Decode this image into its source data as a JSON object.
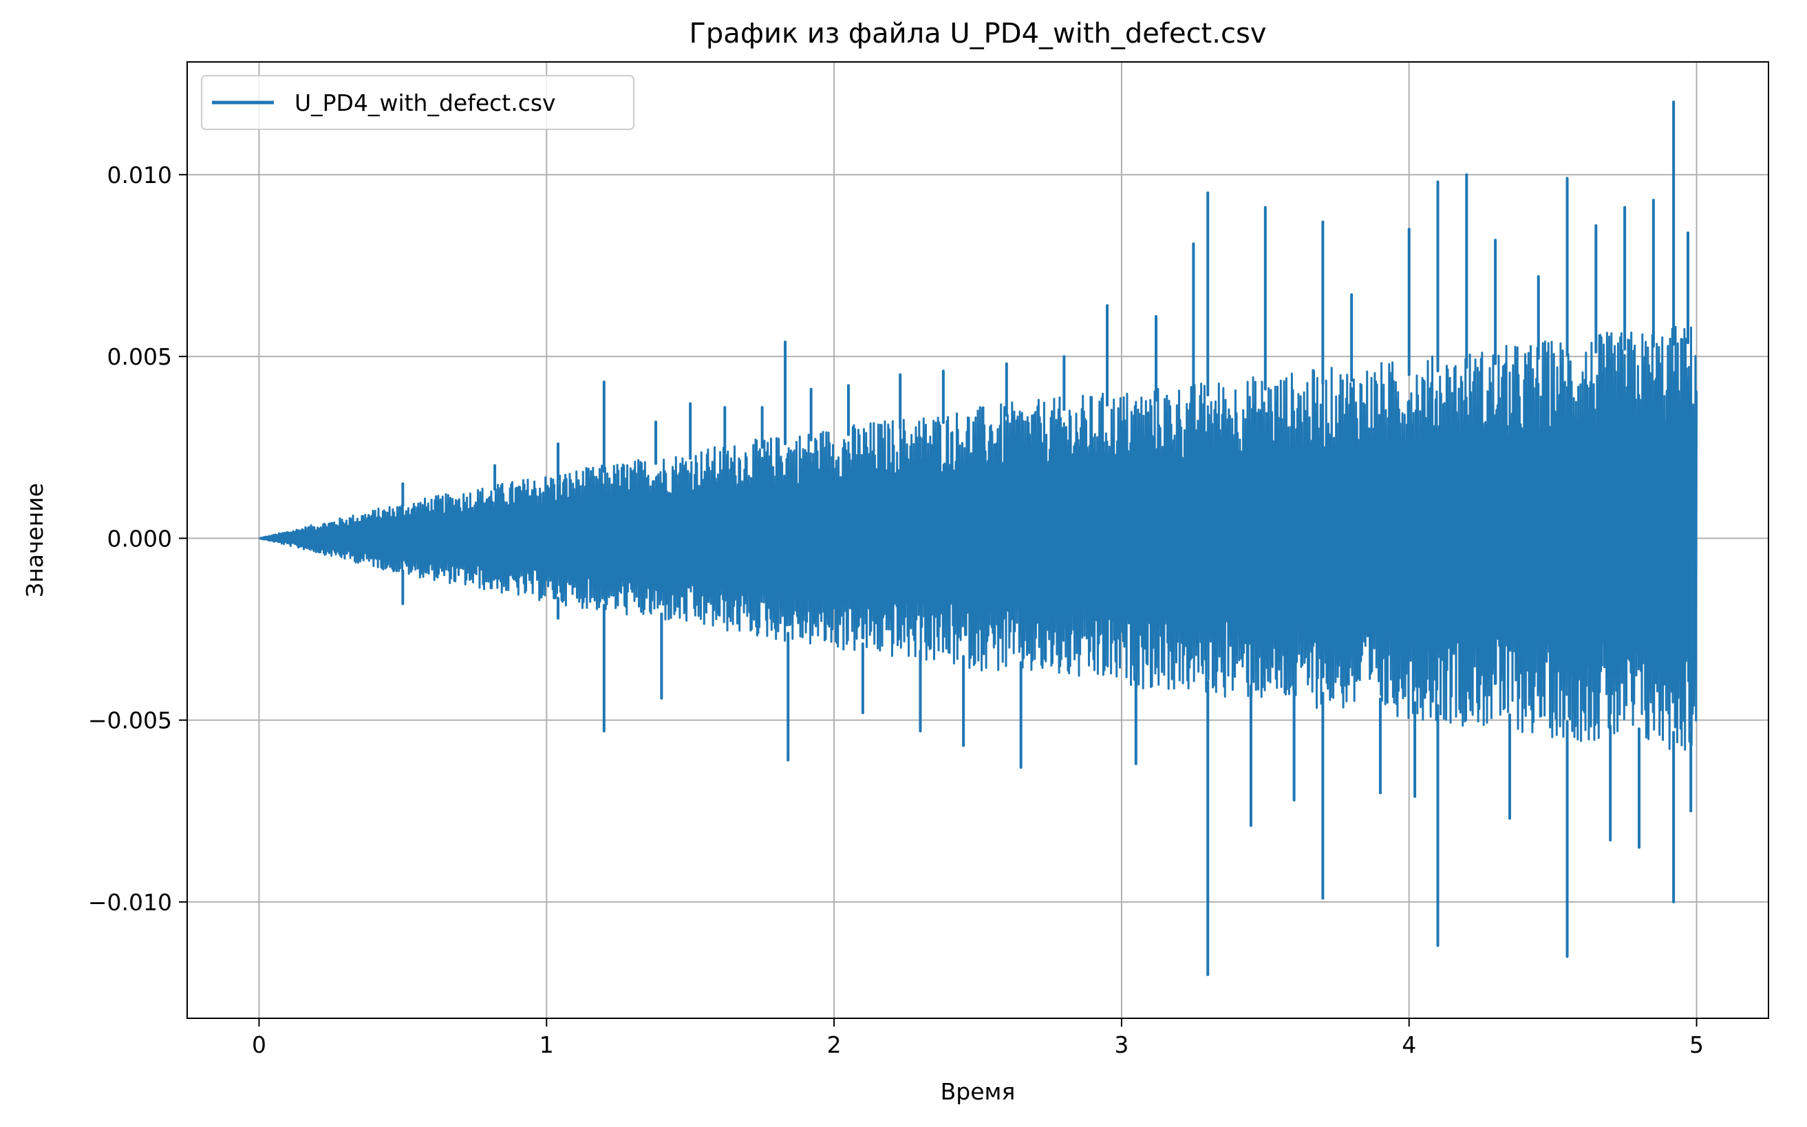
{
  "chart_data": {
    "type": "line",
    "title": "График из файла U_PD4_with_defect.csv",
    "xlabel": "Время",
    "ylabel": "Значение",
    "xlim": [
      -0.25,
      5.25
    ],
    "ylim": [
      -0.0132,
      0.0131
    ],
    "x_ticks": [
      0,
      1,
      2,
      3,
      4,
      5
    ],
    "x_tick_labels": [
      "0",
      "1",
      "2",
      "3",
      "4",
      "5"
    ],
    "y_ticks": [
      -0.01,
      -0.005,
      0.0,
      0.005,
      0.01
    ],
    "y_tick_labels": [
      "−0.010",
      "−0.005",
      "0.000",
      "0.005",
      "0.010"
    ],
    "grid": true,
    "legend_position": "upper-left",
    "series": [
      {
        "name": "U_PD4_with_defect.csv",
        "color": "#1f77b4",
        "x_range": [
          0,
          5
        ],
        "envelope": {
          "x": [
            0,
            0.5,
            1.0,
            1.5,
            2.0,
            2.5,
            3.0,
            3.5,
            4.0,
            4.5,
            5.0
          ],
          "upper": [
            0,
            0.0009,
            0.0016,
            0.0022,
            0.0028,
            0.0033,
            0.0037,
            0.0041,
            0.0045,
            0.005,
            0.0054
          ],
          "lower": [
            0,
            -0.0009,
            -0.0016,
            -0.0022,
            -0.0028,
            -0.0033,
            -0.0037,
            -0.0041,
            -0.0045,
            -0.005,
            -0.0054
          ]
        },
        "spikes": [
          {
            "x": 0.5,
            "y": 0.0015
          },
          {
            "x": 0.5,
            "y": -0.0018
          },
          {
            "x": 0.82,
            "y": 0.002
          },
          {
            "x": 1.04,
            "y": 0.0026
          },
          {
            "x": 1.04,
            "y": -0.0022
          },
          {
            "x": 1.2,
            "y": 0.0043
          },
          {
            "x": 1.2,
            "y": -0.0053
          },
          {
            "x": 1.38,
            "y": 0.0032
          },
          {
            "x": 1.4,
            "y": -0.0044
          },
          {
            "x": 1.5,
            "y": 0.0037
          },
          {
            "x": 1.62,
            "y": 0.0036
          },
          {
            "x": 1.75,
            "y": 0.0036
          },
          {
            "x": 1.83,
            "y": 0.0054
          },
          {
            "x": 1.84,
            "y": -0.0061
          },
          {
            "x": 1.92,
            "y": 0.0041
          },
          {
            "x": 2.05,
            "y": 0.0042
          },
          {
            "x": 2.1,
            "y": -0.0048
          },
          {
            "x": 2.23,
            "y": 0.0045
          },
          {
            "x": 2.3,
            "y": -0.0053
          },
          {
            "x": 2.38,
            "y": 0.0046
          },
          {
            "x": 2.45,
            "y": -0.0057
          },
          {
            "x": 2.6,
            "y": 0.0048
          },
          {
            "x": 2.65,
            "y": -0.0063
          },
          {
            "x": 2.8,
            "y": 0.005
          },
          {
            "x": 2.95,
            "y": 0.0064
          },
          {
            "x": 3.05,
            "y": -0.0062
          },
          {
            "x": 3.12,
            "y": 0.0061
          },
          {
            "x": 3.25,
            "y": 0.0081
          },
          {
            "x": 3.3,
            "y": 0.0095
          },
          {
            "x": 3.3,
            "y": -0.012
          },
          {
            "x": 3.45,
            "y": -0.0079
          },
          {
            "x": 3.5,
            "y": 0.0091
          },
          {
            "x": 3.6,
            "y": -0.0072
          },
          {
            "x": 3.7,
            "y": 0.0087
          },
          {
            "x": 3.7,
            "y": -0.0099
          },
          {
            "x": 3.8,
            "y": 0.0067
          },
          {
            "x": 3.9,
            "y": -0.007
          },
          {
            "x": 4.0,
            "y": 0.0085
          },
          {
            "x": 4.02,
            "y": -0.0071
          },
          {
            "x": 4.1,
            "y": 0.0098
          },
          {
            "x": 4.1,
            "y": -0.0112
          },
          {
            "x": 4.2,
            "y": 0.01
          },
          {
            "x": 4.3,
            "y": 0.0082
          },
          {
            "x": 4.35,
            "y": -0.0077
          },
          {
            "x": 4.45,
            "y": 0.0072
          },
          {
            "x": 4.55,
            "y": 0.0099
          },
          {
            "x": 4.55,
            "y": -0.0115
          },
          {
            "x": 4.65,
            "y": 0.0086
          },
          {
            "x": 4.7,
            "y": -0.0083
          },
          {
            "x": 4.75,
            "y": 0.0091
          },
          {
            "x": 4.8,
            "y": -0.0085
          },
          {
            "x": 4.85,
            "y": 0.0093
          },
          {
            "x": 4.92,
            "y": 0.012
          },
          {
            "x": 4.92,
            "y": -0.01
          },
          {
            "x": 4.97,
            "y": 0.0084
          },
          {
            "x": 4.98,
            "y": -0.0075
          }
        ]
      }
    ]
  }
}
